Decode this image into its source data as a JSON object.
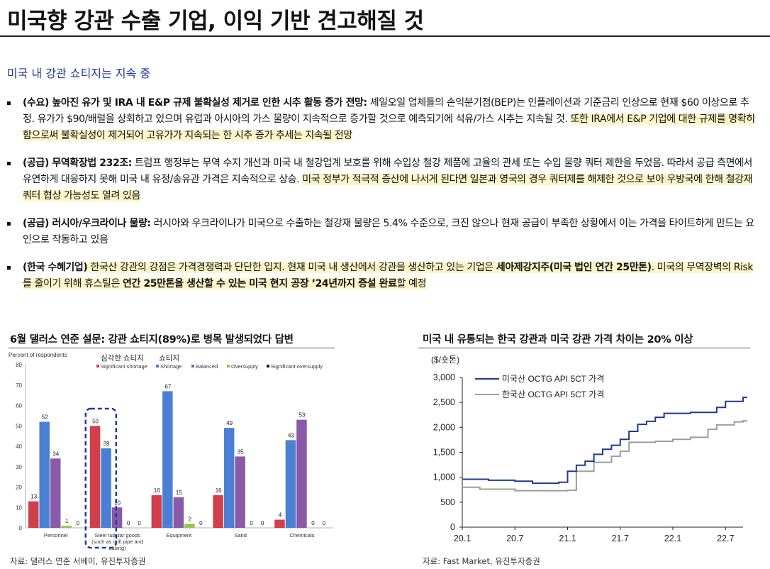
{
  "title": "미국향 강관 수출 기업, 이익 기반 견고해질 것",
  "subtitle": "미국 내 강관 쇼티지는 지속 중",
  "bullets": [
    {
      "label": "(수요) 높아진 유가 및 IRA 내 E&P 규제 불확실성 제거로 인한 시추 활동 증가 전망:",
      "body": " 셰일오일 업체들의 손익분기점(BEP)는 인플레이션과 기준금리 인상으로 현재 $60 이상으로 추정. 유가가 $90/배럴을 상회하고 있으며 유럽과 아시아의 가스 물량이 지속적으로 증가할 것으로 예측되기에 석유/가스 시추는 지속될 것. ",
      "highlight": "또한 IRA에서 E&P 기업에 대한 규제를 명확히 함으로써 불확실성이 제거되어 고유가가 지속되는 한 시추 증가 추세는 지속될 전망"
    },
    {
      "label": "(공급) 무역확장법 232조:",
      "body": " 트럼프 행정부는 무역 수지 개선과 미국 내 철강업계 보호를 위해 수입상 철강 제품에 고율의 관세 또는 수입 물량 쿼터 제한을 두었음. 따라서 공급 측면에서 유연하게 대응하지 못해 미국 내 유정/송유관 가격은 지속적으로 상승. ",
      "highlight": "미국 정부가 적극적 증산에 나서게 된다면 일본과 영국의 경우 쿼터제를 해제한 것으로 보아 우방국에 한해 철강재 쿼터 협상 가능성도 열려 있음"
    },
    {
      "label": "(공급) 러시아/우크라이나 물량:",
      "body": " 러시아와 우크라이나가 미국으로 수출하는 철강재 물량은 5.4% 수준으로, 크진 않으나 현재 공급이 부족한 상황에서 이는 가격을 타이트하게 만드는 요인으로 작동하고 있음",
      "highlight": ""
    },
    {
      "label": "(한국 수혜기업)",
      "highlight_parts": [
        {
          "text": " 한국산 강관의 강점은 가격경쟁력과 단단한 입지. 현재 미국 내 생산에서 강관을 생산하고 있는 기업은 ",
          "bold": false
        },
        {
          "text": "세아제강지주(미국 법인 연간 25만톤)",
          "bold": true
        },
        {
          "text": ". 미국의 무역장벽의 Risk를 줄이기 위해 휴스틸은 ",
          "bold": false
        },
        {
          "text": "연간 25만톤을 생산할 수 있는 미국 현지 공장 ’24년까지 증설 완료",
          "bold": true
        },
        {
          "text": "할 예정",
          "bold": false
        }
      ]
    }
  ],
  "left_chart": {
    "title": "6월 댈러스 연준 설문: 강관 쇼티지(89%)로 병목 발생되었다 답변",
    "source": "자료: 댈러스 연준 서베이, 유진투자증권",
    "annotation_1": "심각한 쇼티지",
    "annotation_2": "쇼티지",
    "colors": {
      "Significant shortage": "#d0404a",
      "Shortage": "#4a7fd4",
      "Balanced": "#8a5aa8",
      "Oversupply": "#8fc94a",
      "Significant oversupply": "#1a1a40"
    }
  },
  "right_chart": {
    "title": "미국 내 유통되는 한국 강관과 미국 강관 가격 차이는 20% 이상",
    "source": "자료: Fast Market, 유진투자증권",
    "unit": "($/숏톤)"
  },
  "chart_data": [
    {
      "type": "bar",
      "ylabel": "Percent of respondents",
      "ylim": [
        0,
        80
      ],
      "yticks": [
        0,
        10,
        20,
        30,
        40,
        50,
        60,
        70,
        80
      ],
      "categories": [
        "Personnel",
        "Steel tubular goods (such as drill pipe and casing)",
        "Equipment",
        "Sand",
        "Chemicals"
      ],
      "category_lines": [
        [
          "Personnel"
        ],
        [
          "Steel tubular goods",
          "(such as drill pipe and",
          "casing)"
        ],
        [
          "Equipment"
        ],
        [
          "Sand"
        ],
        [
          "Chemicals"
        ]
      ],
      "legend": "top",
      "series": [
        {
          "name": "Significant shortage",
          "values": [
            13,
            50,
            16,
            16,
            4
          ]
        },
        {
          "name": "Shortage",
          "values": [
            52,
            39,
            67,
            49,
            43
          ]
        },
        {
          "name": "Balanced",
          "values": [
            34,
            10,
            15,
            35,
            53
          ]
        },
        {
          "name": "Oversupply",
          "values": [
            1,
            0,
            2,
            0,
            0
          ]
        },
        {
          "name": "Significant oversupply",
          "values": [
            0,
            0,
            0,
            0,
            0
          ]
        }
      ],
      "labels": [
        [
          "13",
          "52",
          "34",
          "1",
          "0"
        ],
        [
          "50",
          "39",
          "10",
          "0",
          "0"
        ],
        [
          "16",
          "67",
          "15",
          "2",
          "0"
        ],
        [
          "16",
          "49",
          "35",
          "0",
          "0"
        ],
        [
          "4",
          "43",
          "53",
          "0",
          "0"
        ]
      ]
    },
    {
      "type": "line",
      "ylim": [
        0,
        3000
      ],
      "yticks": [
        "0",
        "500",
        "1,000",
        "1,500",
        "2,000",
        "2,500",
        "3,000"
      ],
      "xticks": [
        "20.1",
        "20.7",
        "21.1",
        "21.7",
        "22.1",
        "22.7"
      ],
      "legend": "top-left",
      "series": [
        {
          "name": "미국산 OCTG API 5CT 가격",
          "color": "#1f3a93",
          "points": [
            [
              "20.1",
              960
            ],
            [
              "20.4",
              940
            ],
            [
              "20.7",
              920
            ],
            [
              "20.9",
              880
            ],
            [
              "21.0",
              900
            ],
            [
              "21.1",
              1120
            ],
            [
              "21.2",
              1240
            ],
            [
              "21.3",
              1320
            ],
            [
              "21.4",
              1460
            ],
            [
              "21.5",
              1560
            ],
            [
              "21.6",
              1640
            ],
            [
              "21.7",
              1760
            ],
            [
              "21.8",
              1920
            ],
            [
              "21.9",
              2060
            ],
            [
              "21.10",
              2120
            ],
            [
              "21.11",
              2200
            ],
            [
              "21.12",
              2280
            ],
            [
              "22.3",
              2300
            ],
            [
              "22.6",
              2400
            ],
            [
              "22.7",
              2520
            ],
            [
              "22.9",
              2600
            ]
          ]
        },
        {
          "name": "한국산 OCTG API 5CT 가격",
          "color": "#9e9e9e",
          "points": [
            [
              "20.1",
              800
            ],
            [
              "20.3",
              760
            ],
            [
              "20.7",
              730
            ],
            [
              "21.1",
              740
            ],
            [
              "21.2",
              1120
            ],
            [
              "21.4",
              1300
            ],
            [
              "21.6",
              1420
            ],
            [
              "21.7",
              1520
            ],
            [
              "21.8",
              1700
            ],
            [
              "21.11",
              1720
            ],
            [
              "22.1",
              1760
            ],
            [
              "22.3",
              1800
            ],
            [
              "22.5",
              1960
            ],
            [
              "22.6",
              2050
            ],
            [
              "22.8",
              2110
            ],
            [
              "22.9",
              2130
            ]
          ]
        }
      ]
    }
  ]
}
